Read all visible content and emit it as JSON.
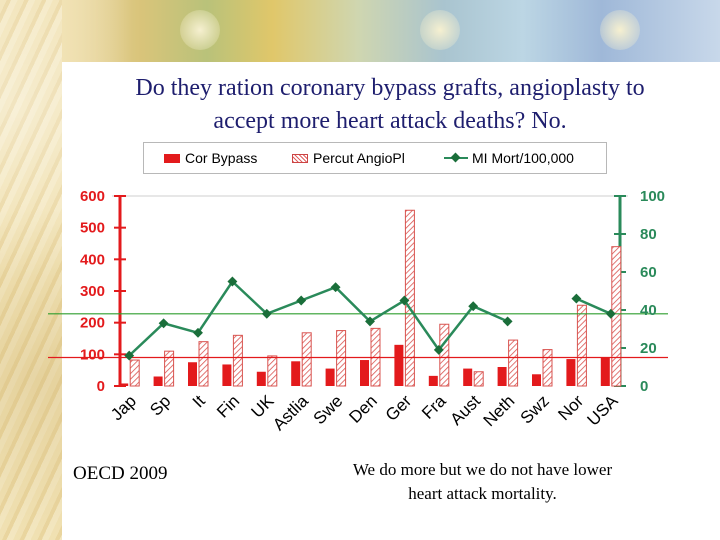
{
  "slide": {
    "title_line1": "Do they ration coronary bypass grafts, angioplasty to",
    "title_line2": "accept more heart attack deaths?  No.",
    "footer_left": "OECD 2009",
    "footer_right_line1": "We do more but we do not have lower",
    "footer_right_line2": "heart attack mortality."
  },
  "chart_data": {
    "type": "bar",
    "title": "",
    "categories": [
      "Jap",
      "Sp",
      "It",
      "Fin",
      "UK",
      "Astlia",
      "Swe",
      "Den",
      "Ger",
      "Fra",
      "Aust",
      "Neth",
      "Swz",
      "Nor",
      "USA"
    ],
    "series": [
      {
        "name": "Cor Bypass",
        "axis": "left",
        "kind": "bar",
        "color": "#e31a1c",
        "values": [
          8,
          30,
          75,
          68,
          45,
          78,
          55,
          82,
          130,
          32,
          55,
          60,
          37,
          85,
          90
        ]
      },
      {
        "name": "Percut AngioPl",
        "axis": "left",
        "kind": "bar-hatched",
        "color": "#d9534f",
        "values": [
          82,
          110,
          140,
          160,
          95,
          168,
          175,
          182,
          555,
          195,
          45,
          145,
          115,
          255,
          440
        ]
      },
      {
        "name": "MI Mort/100,000",
        "axis": "right",
        "kind": "line",
        "color": "#2a8a5a",
        "values": [
          16,
          33,
          28,
          55,
          38,
          45,
          52,
          34,
          45,
          19,
          42,
          34,
          null,
          46,
          38
        ]
      }
    ],
    "y_left": {
      "ticks": [
        "0",
        "100",
        "200",
        "300",
        "400",
        "500",
        "600"
      ],
      "ylim": [
        0,
        600
      ],
      "color": "#e31a1c"
    },
    "y_right": {
      "ticks": [
        "0",
        "20",
        "40",
        "60",
        "80",
        "100"
      ],
      "ylim": [
        0,
        100
      ],
      "color": "#2a8a5a"
    },
    "reference_lines": [
      {
        "axis": "right",
        "value": 38,
        "color": "#2e9e2e"
      },
      {
        "axis": "left",
        "value": 90,
        "color": "#e31a1c"
      }
    ],
    "xlabel": "",
    "ylabel": "",
    "legend": "top"
  }
}
